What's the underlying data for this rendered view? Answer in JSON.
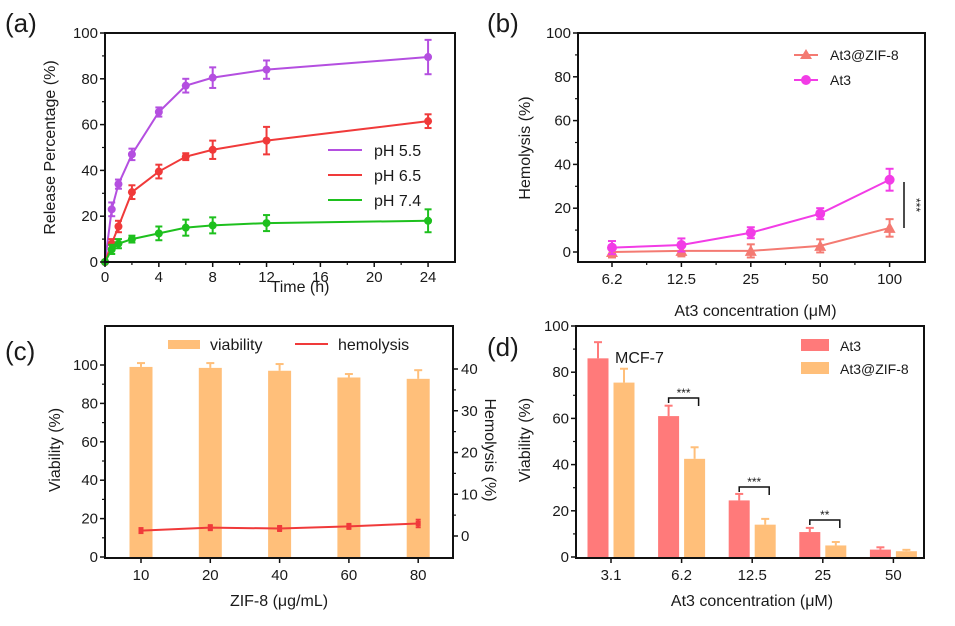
{
  "chart_data": [
    {
      "panel": "(a)",
      "type": "line",
      "title": "",
      "xlabel": "Time (h)",
      "ylabel": "Release Percentage (%)",
      "xlim": [
        0,
        26
      ],
      "ylim": [
        0,
        100
      ],
      "xticks": [
        0,
        4,
        8,
        12,
        16,
        20,
        24
      ],
      "yticks": [
        0,
        20,
        40,
        60,
        80,
        100
      ],
      "grid": false,
      "legend_position": "center-right",
      "x": [
        0,
        0.5,
        1,
        2,
        4,
        6,
        8,
        12,
        24
      ],
      "series": [
        {
          "name": "pH 5.5",
          "color": "#b44fe0",
          "values": [
            0,
            23,
            34,
            47,
            65.5,
            77,
            80.5,
            84,
            89.5
          ],
          "errors": [
            0,
            3,
            2,
            2.5,
            2,
            3,
            4.5,
            4,
            7.5
          ]
        },
        {
          "name": "pH 6.5",
          "color": "#f03a3a",
          "values": [
            0,
            8,
            15.5,
            30.5,
            39.5,
            46,
            49,
            53,
            61.5
          ],
          "errors": [
            0,
            2,
            2.5,
            3,
            3,
            1.5,
            4,
            6,
            3
          ]
        },
        {
          "name": "pH 7.4",
          "color": "#1ec01e",
          "values": [
            0,
            5.5,
            8,
            10,
            12.5,
            15,
            16,
            17,
            18
          ],
          "errors": [
            0,
            2,
            2,
            1.5,
            3,
            3.5,
            3.5,
            3.5,
            5
          ]
        }
      ]
    },
    {
      "panel": "(b)",
      "type": "line",
      "title": "",
      "xlabel": "At3 concentration (μM)",
      "ylabel": "Hemolysis (%)",
      "categories": [
        "6.2",
        "12.5",
        "25",
        "50",
        "100"
      ],
      "ylim": [
        -5,
        100
      ],
      "yticks": [
        0,
        20,
        40,
        60,
        80,
        100
      ],
      "grid": false,
      "legend_position": "top-right",
      "series": [
        {
          "name": "At3@ZIF-8",
          "marker": "triangle",
          "color": "#f47a72",
          "values": [
            0,
            0.5,
            0.5,
            2.8,
            11
          ],
          "errors": [
            2.5,
            2.5,
            3,
            3,
            4
          ]
        },
        {
          "name": "At3",
          "marker": "circle",
          "color": "#f23ce6",
          "values": [
            2,
            3.2,
            8.8,
            17.5,
            33
          ],
          "errors": [
            3,
            3,
            2.5,
            2.5,
            5
          ]
        }
      ],
      "annotations": [
        {
          "text": "***",
          "between": [
            "At3",
            "At3@ZIF-8"
          ],
          "at": "100"
        }
      ]
    },
    {
      "panel": "(c)",
      "type": "bar",
      "title": "",
      "xlabel": "ZIF-8 (μg/mL)",
      "ylabel": "Viability (%)",
      "ylabel_right": "Hemolysis (%)",
      "categories": [
        "10",
        "20",
        "40",
        "60",
        "80"
      ],
      "ylim": [
        0,
        116
      ],
      "yticks": [
        0,
        20,
        40,
        60,
        80,
        100
      ],
      "ylim_right": [
        -5,
        46
      ],
      "yticks_right": [
        0,
        10,
        20,
        30,
        40
      ],
      "grid": false,
      "legend_position": "top",
      "series": [
        {
          "name": "viability",
          "kind": "bar",
          "axis": "left",
          "color": "#ffbf7a",
          "values": [
            99,
            98.5,
            97,
            93.5,
            92.8
          ],
          "errors": [
            2,
            2.5,
            3.5,
            1.8,
            4.5
          ]
        },
        {
          "name": "hemolysis",
          "kind": "line",
          "axis": "right",
          "color": "#f03a3a",
          "values": [
            1.3,
            2,
            1.8,
            2.3,
            3
          ],
          "errors": [
            0.6,
            0.6,
            0.6,
            0.6,
            0.9
          ]
        }
      ]
    },
    {
      "panel": "(d)",
      "type": "bar",
      "title": "",
      "xlabel": "At3 concentration (μM)",
      "ylabel": "Viability (%)",
      "categories": [
        "3.1",
        "6.2",
        "12.5",
        "25",
        "50"
      ],
      "ylim": [
        0,
        100
      ],
      "yticks": [
        0,
        20,
        40,
        60,
        80,
        100
      ],
      "grid": false,
      "legend_position": "top-right",
      "series": [
        {
          "name": "At3",
          "color": "#ff7a7a",
          "values": [
            86,
            61,
            24.5,
            10.8,
            3.2
          ],
          "errors": [
            7,
            4.5,
            2.8,
            1.8,
            1
          ]
        },
        {
          "name": "At3@ZIF-8",
          "color": "#ffbf7a",
          "values": [
            75.5,
            42.5,
            14,
            5,
            2.5
          ],
          "errors": [
            6,
            5,
            2.5,
            1.5,
            0.6
          ]
        }
      ],
      "annotations": [
        {
          "text": "MCF-7",
          "position": "top-left"
        },
        {
          "text": "***",
          "category": "6.2"
        },
        {
          "text": "***",
          "category": "12.5"
        },
        {
          "text": "**",
          "category": "25"
        }
      ]
    }
  ]
}
